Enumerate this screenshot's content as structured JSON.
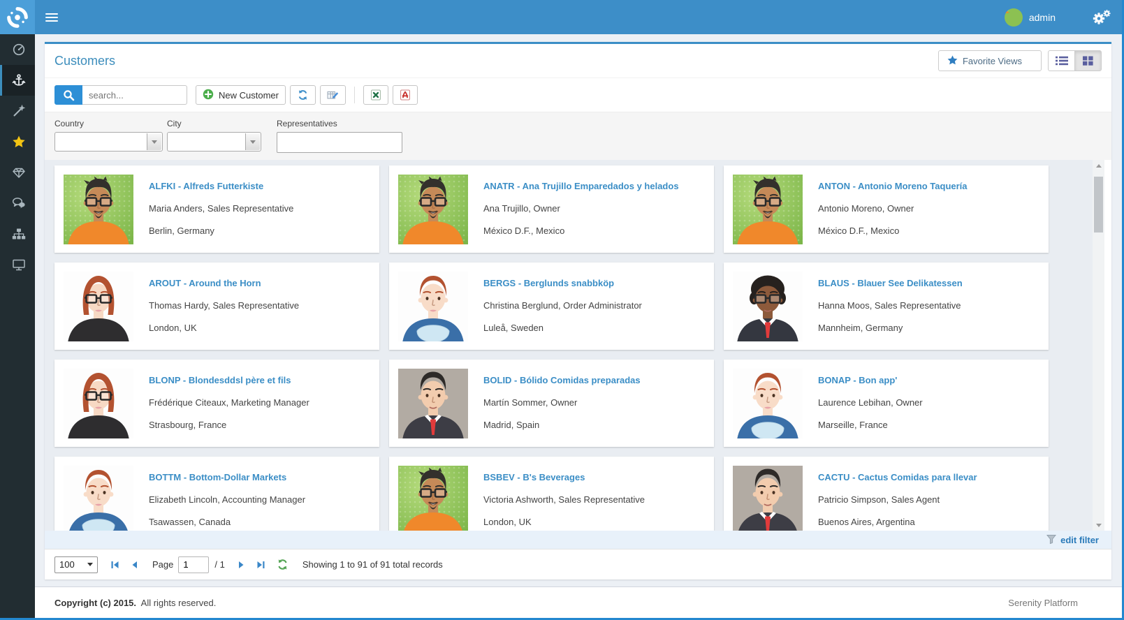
{
  "topbar": {
    "username": "admin"
  },
  "sidebar": {
    "items": [
      {
        "name": "dashboard",
        "icon": "tachometer",
        "active": false
      },
      {
        "name": "northwind",
        "icon": "anchor",
        "active": true
      },
      {
        "name": "samples",
        "icon": "wand",
        "active": false
      },
      {
        "name": "favorites",
        "icon": "star",
        "active": false
      },
      {
        "name": "ui-elements",
        "icon": "gem",
        "active": false
      },
      {
        "name": "forum",
        "icon": "chat",
        "active": false
      },
      {
        "name": "organization",
        "icon": "sitemap",
        "active": false
      },
      {
        "name": "theme",
        "icon": "monitor",
        "active": false
      }
    ]
  },
  "panel": {
    "title": "Customers",
    "favorite_views": {
      "label": "Favorite Views"
    },
    "toolbar": {
      "search_placeholder": "search...",
      "new_customer": "New Customer"
    },
    "filters": {
      "country": "Country",
      "city": "City",
      "representatives": "Representatives"
    }
  },
  "customers": [
    {
      "title": "ALFKI - Alfreds Futterkiste",
      "contact": "Maria Anders, Sales Representative",
      "location": "Berlin, Germany",
      "avatar": "man-green"
    },
    {
      "title": "ANATR - Ana Trujillo Emparedados y helados",
      "contact": "Ana Trujillo, Owner",
      "location": "México D.F., Mexico",
      "avatar": "man-green"
    },
    {
      "title": "ANTON - Antonio Moreno Taquería",
      "contact": "Antonio Moreno, Owner",
      "location": "México D.F., Mexico",
      "avatar": "man-green"
    },
    {
      "title": "AROUT - Around the Horn",
      "contact": "Thomas Hardy, Sales Representative",
      "location": "London, UK",
      "avatar": "woman-dark"
    },
    {
      "title": "BERGS - Berglunds snabbköp",
      "contact": "Christina Berglund, Order Administrator",
      "location": "Luleå, Sweden",
      "avatar": "woman-scarf"
    },
    {
      "title": "BLAUS - Blauer See Delikatessen",
      "contact": "Hanna Moos, Sales Representative",
      "location": "Mannheim, Germany",
      "avatar": "man-afro"
    },
    {
      "title": "BLONP - Blondesddsl père et fils",
      "contact": "Frédérique Citeaux, Marketing Manager",
      "location": "Strasbourg, France",
      "avatar": "woman-dark"
    },
    {
      "title": "BOLID - Bólido Comidas preparadas",
      "contact": "Martín Sommer, Owner",
      "location": "Madrid, Spain",
      "avatar": "man-suit"
    },
    {
      "title": "BONAP - Bon app'",
      "contact": "Laurence Lebihan, Owner",
      "location": "Marseille, France",
      "avatar": "woman-scarf"
    },
    {
      "title": "BOTTM - Bottom-Dollar Markets",
      "contact": "Elizabeth Lincoln, Accounting Manager",
      "location": "Tsawassen, Canada",
      "avatar": "woman-scarf"
    },
    {
      "title": "BSBEV - B's Beverages",
      "contact": "Victoria Ashworth, Sales Representative",
      "location": "London, UK",
      "avatar": "man-green"
    },
    {
      "title": "CACTU - Cactus Comidas para llevar",
      "contact": "Patricio Simpson, Sales Agent",
      "location": "Buenos Aires, Argentina",
      "avatar": "man-suit"
    }
  ],
  "edit_filter": {
    "label": "edit filter"
  },
  "pager": {
    "page_size": "100",
    "page_label": "Page",
    "page_value": "1",
    "of_pages": "/ 1",
    "status": "Showing 1 to 91 of 91 total records"
  },
  "footer": {
    "copyright": "Copyright (c) 2015.",
    "rights": "All rights reserved.",
    "platform": "Serenity Platform"
  }
}
